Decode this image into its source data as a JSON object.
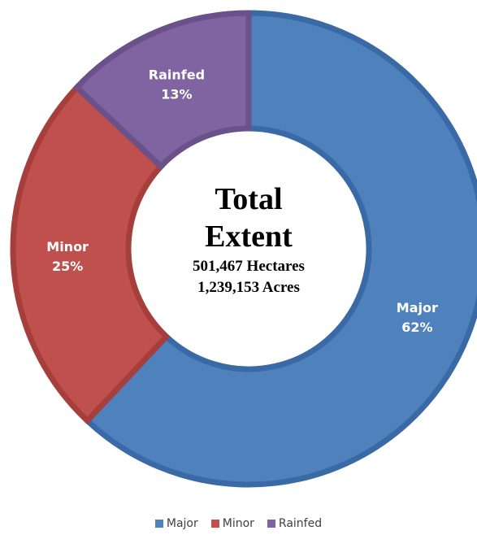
{
  "chart_data": {
    "type": "pie",
    "donut": true,
    "categories": [
      "Major",
      "Minor",
      "Rainfed"
    ],
    "values": [
      62,
      25,
      13
    ],
    "value_suffix": "%",
    "colors": [
      "#4f81bd",
      "#c0504d",
      "#8064a2"
    ],
    "border_colors": [
      "#3a6aa6",
      "#a63e3b",
      "#6a5189"
    ],
    "center_text": {
      "line1": "Total",
      "line2": "Extent",
      "line3": "501,467 Hectares",
      "line4": "1,239,153 Acres"
    },
    "legend_position": "bottom",
    "legend": [
      "Major",
      "Minor",
      "Rainfed"
    ]
  }
}
